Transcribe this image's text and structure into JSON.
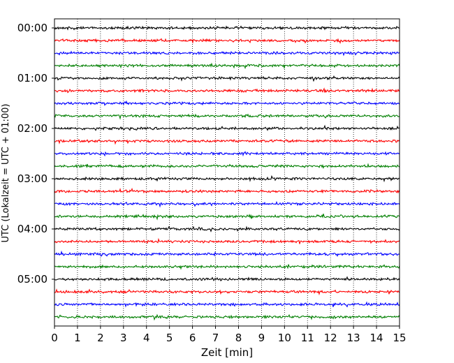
{
  "chart_data": {
    "type": "line",
    "title": "",
    "xlabel": "Zeit  [min]",
    "ylabel": "UTC (Lokalzeit = UTC + 01:00)",
    "xlim": [
      0,
      15
    ],
    "x_ticks": [
      0,
      1,
      2,
      3,
      4,
      5,
      6,
      7,
      8,
      9,
      10,
      11,
      12,
      13,
      14,
      15
    ],
    "x_tick_labels": [
      "0",
      "1",
      "2",
      "3",
      "4",
      "5",
      "6",
      "7",
      "8",
      "9",
      "10",
      "11",
      "12",
      "13",
      "14",
      "15"
    ],
    "y_tick_labels": [
      "00:00",
      "01:00",
      "02:00",
      "03:00",
      "04:00",
      "05:00"
    ],
    "trace_minutes": [
      "00:00",
      "00:15",
      "00:30",
      "00:45",
      "01:00",
      "01:15",
      "01:30",
      "01:45",
      "02:00",
      "02:15",
      "02:30",
      "02:45",
      "03:00",
      "03:15",
      "03:30",
      "03:45",
      "04:00",
      "04:15",
      "04:30",
      "04:45",
      "05:00",
      "05:15",
      "05:30",
      "05:45"
    ],
    "trace_colors": [
      "#000000",
      "#ff0000",
      "#0000ff",
      "#007f00"
    ],
    "grid": "vertical dotted",
    "legend": "none"
  }
}
